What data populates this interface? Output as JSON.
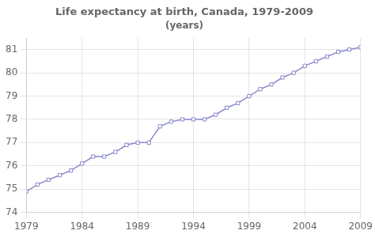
{
  "chart_data": {
    "type": "line",
    "title": "Life expectancy at birth, Canada, 1979-2009",
    "subtitle": "(years)",
    "x": [
      1979,
      1980,
      1981,
      1982,
      1983,
      1984,
      1985,
      1986,
      1987,
      1988,
      1989,
      1990,
      1991,
      1992,
      1993,
      1994,
      1995,
      1996,
      1997,
      1998,
      1999,
      2000,
      2001,
      2002,
      2003,
      2004,
      2005,
      2006,
      2007,
      2008,
      2009
    ],
    "values": [
      74.9,
      75.2,
      75.4,
      75.6,
      75.8,
      76.1,
      76.4,
      76.4,
      76.6,
      76.9,
      77.0,
      77.0,
      77.7,
      77.9,
      78.0,
      78.0,
      78.0,
      78.2,
      78.5,
      78.7,
      79.0,
      79.3,
      79.5,
      79.8,
      80.0,
      80.3,
      80.5,
      80.7,
      80.9,
      81.0,
      81.1
    ],
    "color": "#8888cc",
    "marker": "square",
    "xlim": [
      1979,
      2009
    ],
    "ylim": [
      74,
      81.5
    ],
    "xticks": [
      1979,
      1984,
      1989,
      1994,
      1999,
      2004,
      2009
    ],
    "yticks": [
      74,
      75,
      76,
      77,
      78,
      79,
      80,
      81
    ],
    "grid": true
  }
}
